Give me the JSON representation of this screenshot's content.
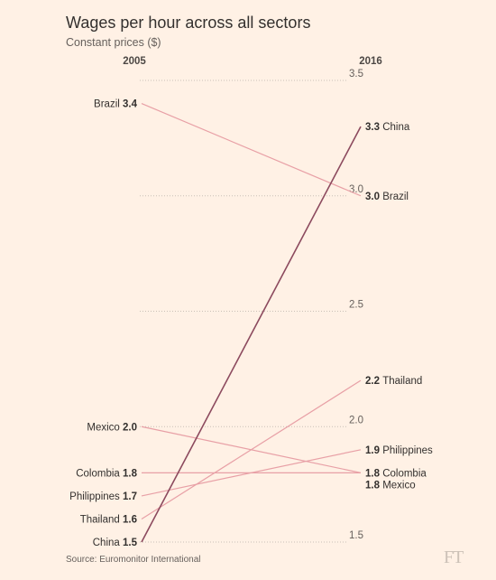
{
  "title": "Wages per hour across all sectors",
  "subtitle": "Constant prices ($)",
  "source": "Source: Euromonitor International",
  "logo": "FT",
  "chart_data": {
    "type": "line",
    "subtype": "slope",
    "title": "Wages per hour across all sectors",
    "subtitle": "Constant prices ($)",
    "start_label": "2005",
    "end_label": "2016",
    "ylim": [
      1.5,
      3.5
    ],
    "yticks": [
      "1.5",
      "2.0",
      "2.5",
      "3.0",
      "3.5"
    ],
    "series": [
      {
        "name": "Brazil",
        "start": 3.4,
        "end": 3.0,
        "start_text": "3.4",
        "end_text": "3.0",
        "color": "#e8a0a6",
        "highlight": false
      },
      {
        "name": "China",
        "start": 1.5,
        "end": 3.3,
        "start_text": "1.5",
        "end_text": "3.3",
        "color": "#8c4a5e",
        "highlight": true
      },
      {
        "name": "Thailand",
        "start": 1.6,
        "end": 2.2,
        "start_text": "1.6",
        "end_text": "2.2",
        "color": "#e8a0a6",
        "highlight": false
      },
      {
        "name": "Philippines",
        "start": 1.7,
        "end": 1.9,
        "start_text": "1.7",
        "end_text": "1.9",
        "color": "#e8a0a6",
        "highlight": false
      },
      {
        "name": "Colombia",
        "start": 1.8,
        "end": 1.8,
        "start_text": "1.8",
        "end_text": "1.8",
        "color": "#e8a0a6",
        "highlight": false
      },
      {
        "name": "Mexico",
        "start": 2.0,
        "end": 1.8,
        "start_text": "2.0",
        "end_text": "1.8",
        "color": "#e8a0a6",
        "highlight": false
      }
    ]
  }
}
